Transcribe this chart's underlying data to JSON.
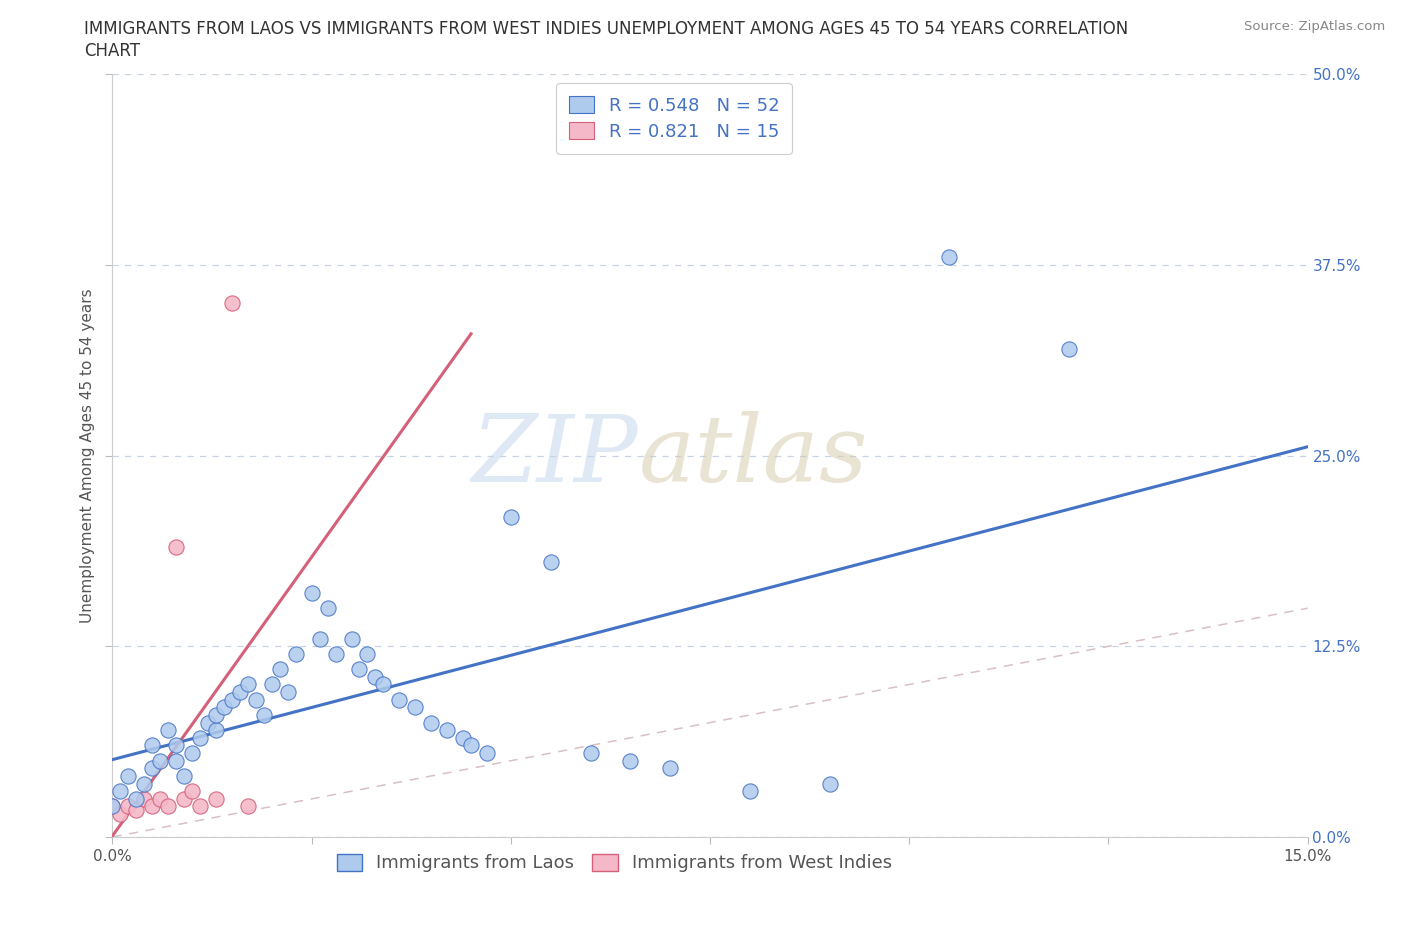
{
  "title_line1": "IMMIGRANTS FROM LAOS VS IMMIGRANTS FROM WEST INDIES UNEMPLOYMENT AMONG AGES 45 TO 54 YEARS CORRELATION",
  "title_line2": "CHART",
  "source": "Source: ZipAtlas.com",
  "ylabel": "Unemployment Among Ages 45 to 54 years",
  "watermark_zip": "ZIP",
  "watermark_atlas": "atlas",
  "xlim": [
    0.0,
    0.15
  ],
  "ylim": [
    0.0,
    0.5
  ],
  "yticks": [
    0.0,
    0.125,
    0.25,
    0.375,
    0.5
  ],
  "ytick_labels": [
    "0.0%",
    "12.5%",
    "25.0%",
    "37.5%",
    "50.0%"
  ],
  "xtick_positions": [
    0.0,
    0.025,
    0.05,
    0.075,
    0.1,
    0.125,
    0.15
  ],
  "xtick_labels": [
    "0.0%",
    "",
    "",
    "",
    "",
    "",
    "15.0%"
  ],
  "laos_color": "#aecbee",
  "laos_edge_color": "#4472c4",
  "laos_line_color": "#4472c4",
  "west_indies_color": "#f4b8c8",
  "west_indies_edge_color": "#d4607a",
  "west_indies_line_color": "#d4607a",
  "diagonal_color": "#d8c0c4",
  "R_laos": 0.548,
  "N_laos": 52,
  "R_west_indies": 0.821,
  "N_west_indies": 15,
  "laos_x": [
    0.0,
    0.001,
    0.002,
    0.003,
    0.004,
    0.005,
    0.005,
    0.006,
    0.007,
    0.008,
    0.008,
    0.009,
    0.01,
    0.011,
    0.012,
    0.013,
    0.013,
    0.014,
    0.015,
    0.016,
    0.017,
    0.018,
    0.019,
    0.02,
    0.021,
    0.022,
    0.023,
    0.025,
    0.026,
    0.027,
    0.028,
    0.03,
    0.031,
    0.032,
    0.033,
    0.034,
    0.036,
    0.038,
    0.04,
    0.042,
    0.044,
    0.045,
    0.047,
    0.05,
    0.055,
    0.06,
    0.065,
    0.07,
    0.08,
    0.09,
    0.105,
    0.12
  ],
  "laos_y": [
    0.02,
    0.03,
    0.04,
    0.025,
    0.035,
    0.045,
    0.06,
    0.05,
    0.07,
    0.06,
    0.05,
    0.04,
    0.055,
    0.065,
    0.075,
    0.07,
    0.08,
    0.085,
    0.09,
    0.095,
    0.1,
    0.09,
    0.08,
    0.1,
    0.11,
    0.095,
    0.12,
    0.16,
    0.13,
    0.15,
    0.12,
    0.13,
    0.11,
    0.12,
    0.105,
    0.1,
    0.09,
    0.085,
    0.075,
    0.07,
    0.065,
    0.06,
    0.055,
    0.21,
    0.18,
    0.055,
    0.05,
    0.045,
    0.03,
    0.035,
    0.38,
    0.32
  ],
  "west_indies_x": [
    0.0,
    0.001,
    0.002,
    0.003,
    0.004,
    0.005,
    0.006,
    0.007,
    0.008,
    0.009,
    0.01,
    0.011,
    0.013,
    0.015,
    0.017
  ],
  "west_indies_y": [
    0.02,
    0.015,
    0.02,
    0.018,
    0.025,
    0.02,
    0.025,
    0.02,
    0.19,
    0.025,
    0.03,
    0.02,
    0.025,
    0.35,
    0.02
  ],
  "legend_label_laos": "Immigrants from Laos",
  "legend_label_west_indies": "Immigrants from West Indies",
  "background_color": "#ffffff",
  "grid_color": "#c8d4e4",
  "title_fontsize": 12,
  "axis_label_fontsize": 11,
  "tick_fontsize": 11,
  "legend_fontsize": 13,
  "right_tick_color": "#4472c4",
  "left_tick_color": "#555555",
  "title_color": "#333333",
  "source_color": "#888888"
}
